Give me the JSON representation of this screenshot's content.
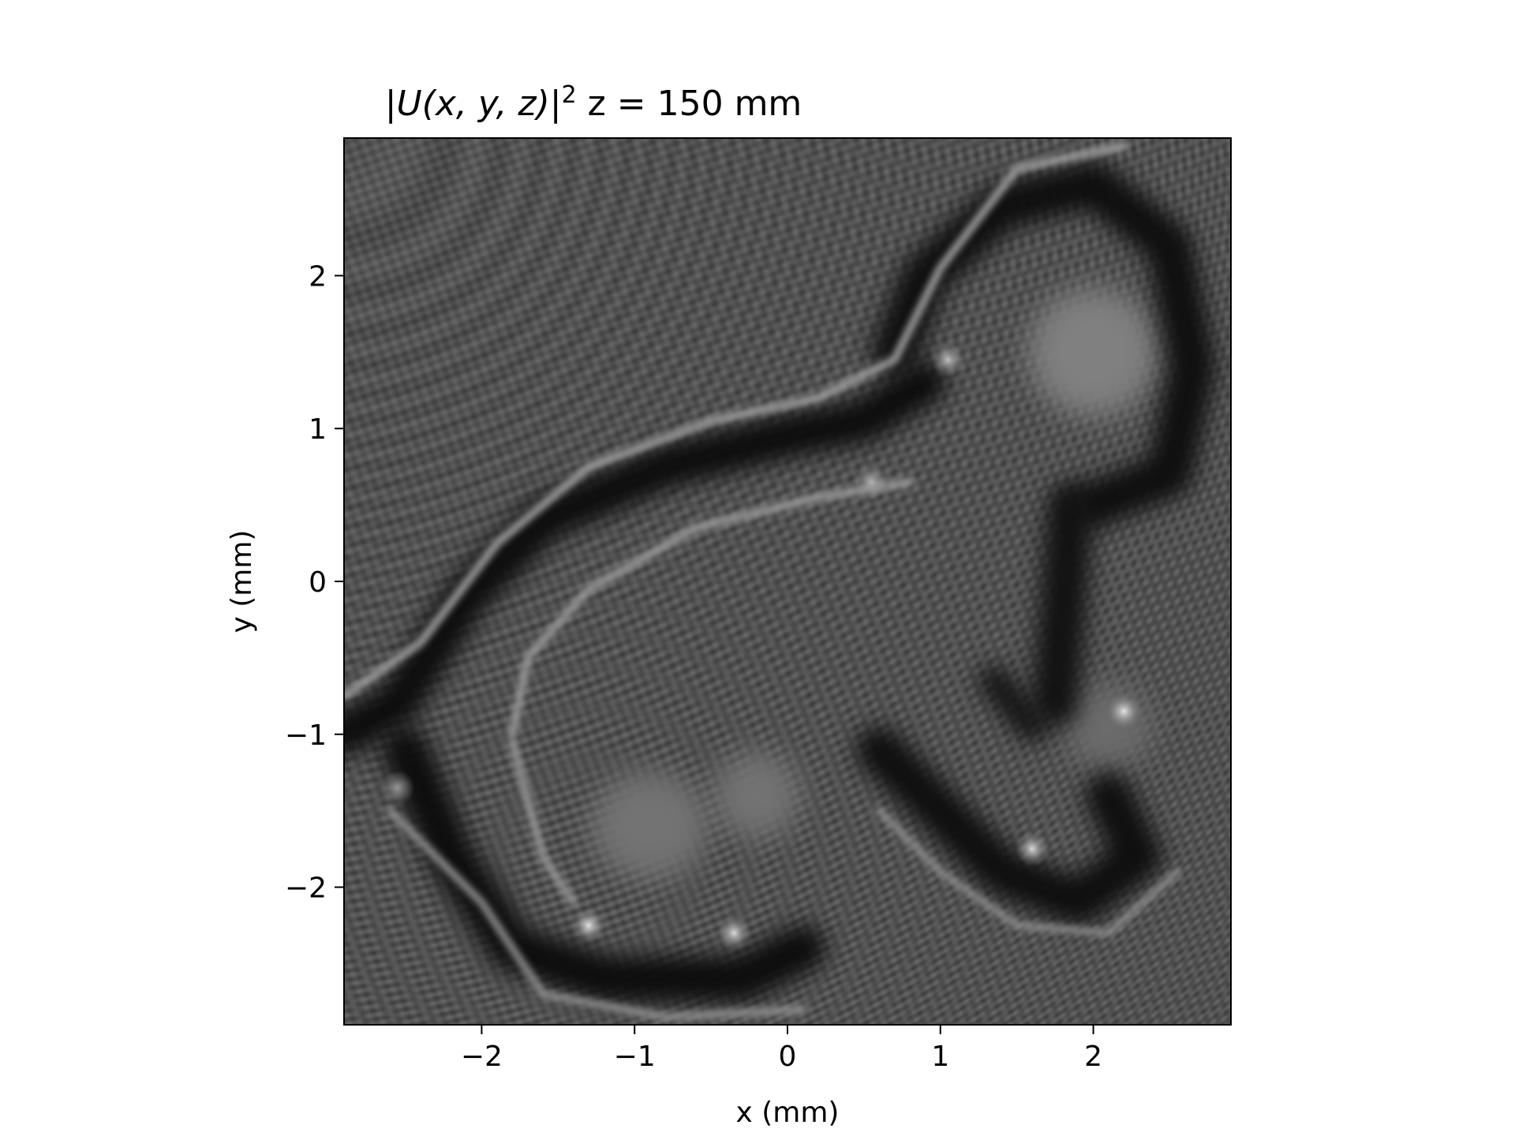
{
  "chart_data": {
    "type": "heatmap",
    "title_prefix": "|U(x, y, z)|",
    "title_exponent": "2",
    "title_suffix": " z = 150 mm",
    "xlabel": "x (mm)",
    "ylabel": "y (mm)",
    "xlim": [
      -2.9,
      2.9
    ],
    "ylim": [
      -2.9,
      2.9
    ],
    "colormap": "gray",
    "grid": false,
    "x_ticks": [
      {
        "value": -2,
        "label": "−2"
      },
      {
        "value": -1,
        "label": "−1"
      },
      {
        "value": 0,
        "label": "0"
      },
      {
        "value": 1,
        "label": "1"
      },
      {
        "value": 2,
        "label": "2"
      }
    ],
    "y_ticks": [
      {
        "value": -2,
        "label": "−2"
      },
      {
        "value": -1,
        "label": "−1"
      },
      {
        "value": 0,
        "label": "0"
      },
      {
        "value": 1,
        "label": "1"
      },
      {
        "value": 2,
        "label": "2"
      }
    ],
    "background_intensity": 0.32,
    "dark_bands": [
      {
        "points": [
          [
            -2.9,
            -1.0
          ],
          [
            -2.55,
            -0.8
          ],
          [
            -2.1,
            -0.1
          ],
          [
            -1.6,
            0.4
          ],
          [
            -0.8,
            0.75
          ],
          [
            0.0,
            0.95
          ],
          [
            0.5,
            1.05
          ],
          [
            0.9,
            1.3
          ]
        ],
        "width": 0.28,
        "intensity": 0.05
      },
      {
        "points": [
          [
            -2.5,
            -1.1
          ],
          [
            -2.2,
            -1.8
          ],
          [
            -1.8,
            -2.4
          ],
          [
            -1.2,
            -2.6
          ],
          [
            -0.3,
            -2.6
          ],
          [
            0.1,
            -2.4
          ]
        ],
        "width": 0.3,
        "intensity": 0.05
      },
      {
        "points": [
          [
            0.7,
            1.5
          ],
          [
            0.9,
            2.0
          ],
          [
            1.4,
            2.45
          ],
          [
            2.0,
            2.6
          ],
          [
            2.5,
            2.2
          ],
          [
            2.65,
            1.4
          ],
          [
            2.5,
            0.7
          ],
          [
            2.0,
            0.5
          ]
        ],
        "width": 0.3,
        "intensity": 0.06
      },
      {
        "points": [
          [
            1.85,
            0.5
          ],
          [
            1.8,
            -0.2
          ],
          [
            1.75,
            -0.8
          ]
        ],
        "width": 0.3,
        "intensity": 0.07
      },
      {
        "points": [
          [
            0.6,
            -1.1
          ],
          [
            1.0,
            -1.5
          ],
          [
            1.4,
            -1.9
          ],
          [
            1.9,
            -2.1
          ],
          [
            2.3,
            -1.8
          ],
          [
            2.1,
            -1.4
          ]
        ],
        "width": 0.3,
        "intensity": 0.06
      },
      {
        "points": [
          [
            1.35,
            -0.65
          ],
          [
            1.6,
            -0.95
          ]
        ],
        "width": 0.2,
        "intensity": 0.08
      }
    ],
    "bright_rings": [
      {
        "points": [
          [
            -2.9,
            -0.75
          ],
          [
            -2.4,
            -0.4
          ],
          [
            -1.9,
            0.25
          ],
          [
            -1.3,
            0.75
          ],
          [
            -0.5,
            1.05
          ],
          [
            0.2,
            1.2
          ],
          [
            0.7,
            1.45
          ],
          [
            1.0,
            2.05
          ],
          [
            1.5,
            2.7
          ],
          [
            2.2,
            2.85
          ]
        ],
        "width": 0.05,
        "intensity": 0.62
      },
      {
        "points": [
          [
            -1.8,
            -1.0
          ],
          [
            -1.7,
            -0.5
          ],
          [
            -1.3,
            -0.05
          ],
          [
            -0.6,
            0.35
          ],
          [
            0.2,
            0.55
          ],
          [
            0.8,
            0.65
          ]
        ],
        "width": 0.05,
        "intensity": 0.6
      },
      {
        "points": [
          [
            -1.8,
            -1.05
          ],
          [
            -1.6,
            -1.8
          ],
          [
            -1.4,
            -2.1
          ]
        ],
        "width": 0.05,
        "intensity": 0.58
      },
      {
        "points": [
          [
            -2.6,
            -1.5
          ],
          [
            -2.0,
            -2.1
          ],
          [
            -1.6,
            -2.7
          ],
          [
            -0.8,
            -2.85
          ],
          [
            0.1,
            -2.8
          ]
        ],
        "width": 0.05,
        "intensity": 0.55
      },
      {
        "points": [
          [
            0.6,
            -1.5
          ],
          [
            1.0,
            -1.9
          ],
          [
            1.5,
            -2.25
          ],
          [
            2.1,
            -2.3
          ],
          [
            2.55,
            -1.9
          ]
        ],
        "width": 0.045,
        "intensity": 0.55
      }
    ],
    "bright_regions": [
      {
        "cx": 2.0,
        "cy": 1.5,
        "rx": 0.42,
        "ry": 0.42,
        "intensity": 0.5
      },
      {
        "cx": -0.9,
        "cy": -1.6,
        "rx": 0.38,
        "ry": 0.35,
        "intensity": 0.45
      },
      {
        "cx": -0.2,
        "cy": -1.4,
        "rx": 0.28,
        "ry": 0.28,
        "intensity": 0.45
      },
      {
        "cx": 2.1,
        "cy": -0.95,
        "rx": 0.28,
        "ry": 0.28,
        "intensity": 0.42
      }
    ],
    "bright_spots": [
      {
        "x": -1.3,
        "y": -2.25,
        "intensity": 0.9
      },
      {
        "x": -0.35,
        "y": -2.3,
        "intensity": 0.85
      },
      {
        "x": 1.6,
        "y": -1.75,
        "intensity": 0.85
      },
      {
        "x": 2.2,
        "y": -0.85,
        "intensity": 0.9
      },
      {
        "x": 1.05,
        "y": 1.45,
        "intensity": 0.75
      },
      {
        "x": 0.55,
        "y": 0.65,
        "intensity": 0.7
      },
      {
        "x": -2.55,
        "y": -1.35,
        "intensity": 0.6
      }
    ]
  }
}
